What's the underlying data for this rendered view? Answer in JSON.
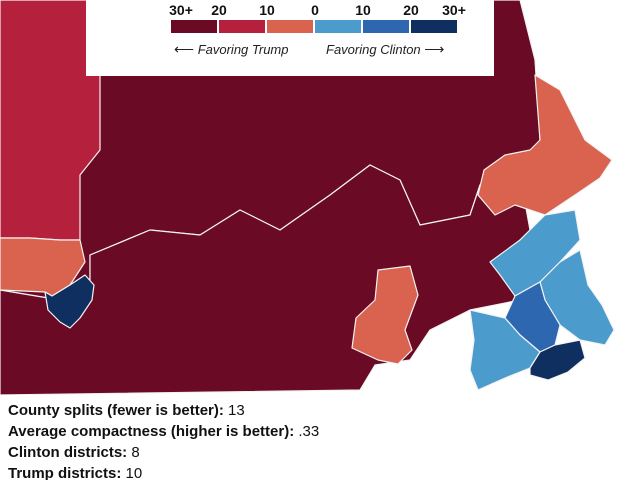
{
  "legend": {
    "ticks": [
      "30+",
      "20",
      "10",
      "0",
      "10",
      "20",
      "30+"
    ],
    "colors": [
      "#6b0a25",
      "#b5213c",
      "#d9634f",
      "#4b9ccc",
      "#2d67b0",
      "#0e2f60"
    ],
    "favor_trump": "Favoring Trump",
    "favor_clinton": "Favoring Clinton",
    "arrow_left": "⟵",
    "arrow_right": "⟶"
  },
  "stats": [
    {
      "label": "County splits (fewer is better):",
      "value": "13"
    },
    {
      "label": "Average compactness (higher is better):",
      "value": ".33"
    },
    {
      "label": "Clinton districts:",
      "value": "8"
    },
    {
      "label": "Trump districts:",
      "value": "10"
    }
  ],
  "map_colors": {
    "trump_30": "#6b0a25",
    "trump_20": "#b5213c",
    "trump_10": "#d9634f",
    "clinton_0": "#4b9ccc",
    "clinton_10": "#2d67b0",
    "clinton_30": "#0e2f60"
  }
}
